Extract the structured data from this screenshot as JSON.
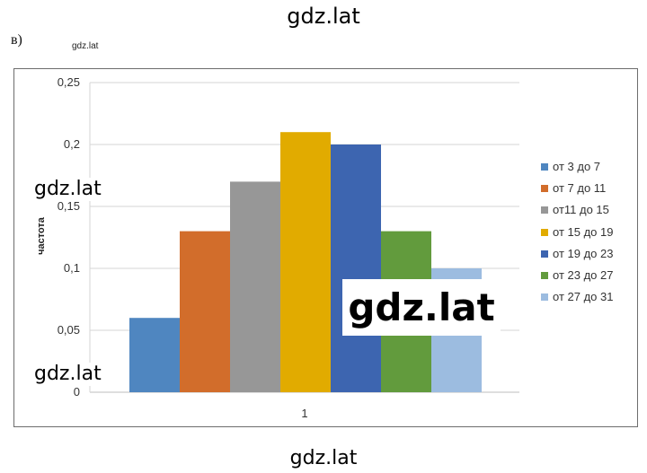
{
  "watermarks": {
    "top": "gdz.lat",
    "bottom": "gdz.lat",
    "tiny": "gdz.lat",
    "left_upper": "gdz.lat",
    "left_lower": "gdz.lat",
    "big": "gdz.lat"
  },
  "figure_label": "в)",
  "chart_data": {
    "type": "bar",
    "categories": [
      "1"
    ],
    "ylabel": "частота",
    "xlabel": "",
    "ylim": [
      0,
      0.25
    ],
    "yticks": [
      "0",
      "0,05",
      "0,1",
      "0,15",
      "0,2",
      "0,25"
    ],
    "grid": true,
    "legend_position": "right",
    "series": [
      {
        "name": "от 3 до 7",
        "values": [
          0.06
        ],
        "color": "#4f86c0"
      },
      {
        "name": "от 7 до 11",
        "values": [
          0.13
        ],
        "color": "#d26d2b"
      },
      {
        "name": "от11 до 15",
        "values": [
          0.17
        ],
        "color": "#979797"
      },
      {
        "name": "от 15 до 19",
        "values": [
          0.21
        ],
        "color": "#e1ab00"
      },
      {
        "name": "от 19 до 23",
        "values": [
          0.2
        ],
        "color": "#3d65b0"
      },
      {
        "name": "от 23 до 27",
        "values": [
          0.13
        ],
        "color": "#629b3d"
      },
      {
        "name": "от 27 до 31",
        "values": [
          0.1
        ],
        "color": "#9cbce0"
      }
    ]
  }
}
